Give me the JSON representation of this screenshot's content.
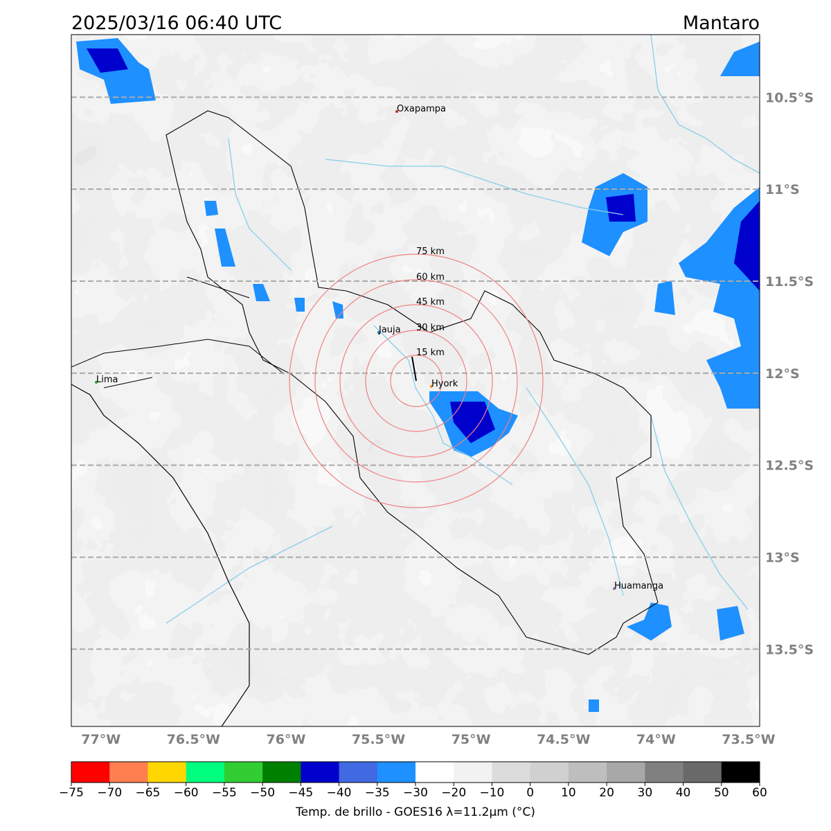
{
  "title_left": "2025/03/16 06:40 UTC",
  "title_right": "Mantaro",
  "map": {
    "lon_range": [
      -77.16,
      -73.44
    ],
    "lat_range": [
      -10.16,
      -13.92
    ],
    "xticks": [
      {
        "value": -77,
        "label": "77°W"
      },
      {
        "value": -76.5,
        "label": "76.5°W"
      },
      {
        "value": -76,
        "label": "76°W"
      },
      {
        "value": -75.5,
        "label": "75.5°W"
      },
      {
        "value": -75,
        "label": "75°W"
      },
      {
        "value": -74.5,
        "label": "74.5°W"
      },
      {
        "value": -74,
        "label": "74°W"
      },
      {
        "value": -73.5,
        "label": "73.5°W"
      }
    ],
    "yticks": [
      {
        "value": -10.5,
        "label": "10.5°S"
      },
      {
        "value": -11,
        "label": "11°S"
      },
      {
        "value": -11.5,
        "label": "11.5°S"
      },
      {
        "value": -12,
        "label": "12°S"
      },
      {
        "value": -12.5,
        "label": "12.5°S"
      },
      {
        "value": -13,
        "label": "13°S"
      },
      {
        "value": -13.5,
        "label": "13.5°S"
      }
    ],
    "cities": [
      "Oxapampa",
      "Jauja",
      "Hyork",
      "Lima",
      "Huamanga"
    ],
    "rings": [
      "15 km",
      "30 km",
      "45 km",
      "60 km",
      "75 km"
    ]
  },
  "colorbar": {
    "label": "Temp. de brillo - GOES16 λ=11.2μm (°C)",
    "colors": [
      "#ff0000",
      "#ff7f50",
      "#ffd700",
      "#00ff7f",
      "#32cd32",
      "#008000",
      "#0000cd",
      "#4169e1",
      "#1e90ff",
      "#ffffff",
      "#f2f2f2",
      "#dcdcdc",
      "#d0d0d0",
      "#bebebe",
      "#a8a8a8",
      "#808080",
      "#696969",
      "#000000"
    ],
    "ticks": [
      {
        "value": -75,
        "label": "−75"
      },
      {
        "value": -70,
        "label": "−70"
      },
      {
        "value": -65,
        "label": "−65"
      },
      {
        "value": -60,
        "label": "−60"
      },
      {
        "value": -55,
        "label": "−55"
      },
      {
        "value": -50,
        "label": "−50"
      },
      {
        "value": -45,
        "label": "−45"
      },
      {
        "value": -40,
        "label": "−40"
      },
      {
        "value": -35,
        "label": "−35"
      },
      {
        "value": -30,
        "label": "−30"
      },
      {
        "value": -20,
        "label": "−20"
      },
      {
        "value": -10,
        "label": "−10"
      },
      0,
      10,
      20,
      30,
      40,
      50,
      60
    ]
  }
}
